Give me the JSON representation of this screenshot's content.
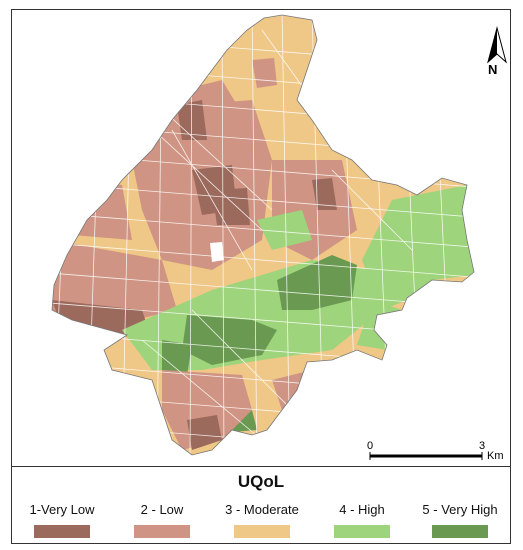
{
  "map": {
    "north_label": "N",
    "scale": {
      "start": "0",
      "end": "3",
      "unit": "Km"
    },
    "legend": {
      "title": "UQoL",
      "items": [
        {
          "label": "1-Very Low",
          "color": "#9b6a5c"
        },
        {
          "label": "2 - Low",
          "color": "#cf9483"
        },
        {
          "label": "3 - Moderate",
          "color": "#efc787"
        },
        {
          "label": "4 - High",
          "color": "#9ed47c"
        },
        {
          "label": "5 - Very High",
          "color": "#6a9a52"
        }
      ]
    }
  }
}
